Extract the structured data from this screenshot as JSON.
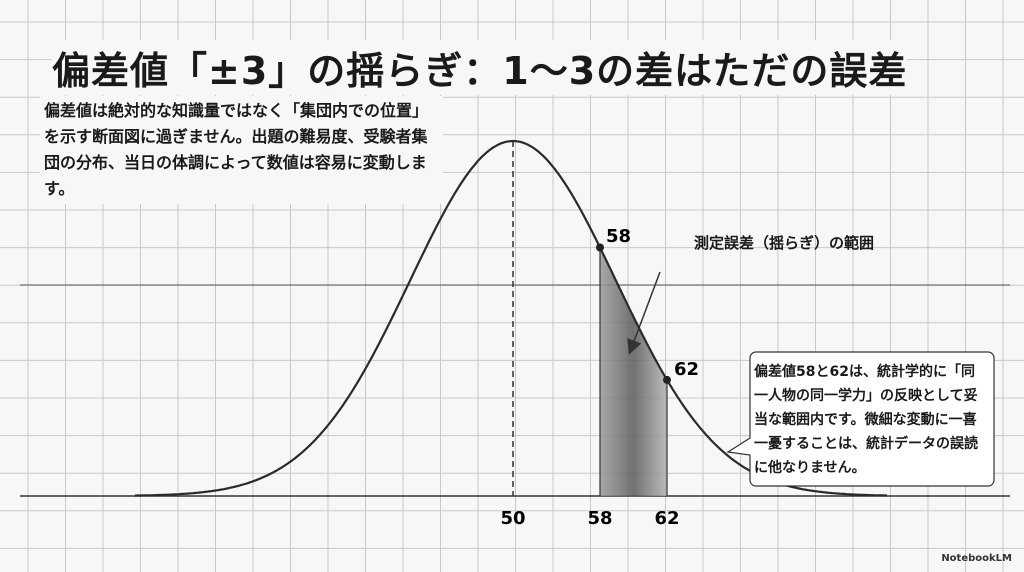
{
  "title": "偏差値「±3」の揺らぎ：1〜3の差はただの誤差",
  "description": "偏差値は絶対的な知識量ではなく「集団内での位置」を示す断面図に過ぎません。出題の難易度、受験者集団の分布、当日の体調によって数値は容易に変動します。",
  "curve": {
    "mean_label": "50",
    "points": [
      {
        "label": "58"
      },
      {
        "label": "62"
      }
    ],
    "axis_labels": [
      "50",
      "58",
      "62"
    ]
  },
  "annotation": "測定誤差（揺らぎ）の範囲",
  "callout": "偏差値58と62は、統計学的に「同一人物の同一学力」の反映として妥当な範囲内です。微細な変動に一喜一憂することは、統計データの誤読に他なりません。",
  "footer": "NotebookLM"
}
